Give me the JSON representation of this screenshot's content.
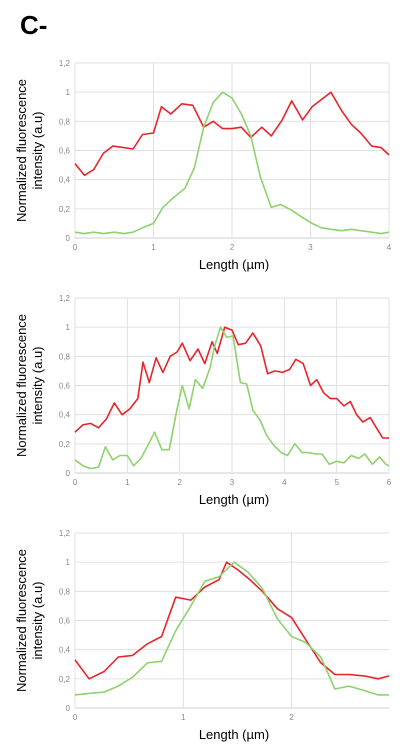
{
  "panel_label": "C-",
  "colors": {
    "red": "#e8242b",
    "green": "#8fd16e",
    "grid": "#e0e0e0",
    "axis": "#cfcfcf",
    "tick": "#888888"
  },
  "chart_data": [
    {
      "type": "line",
      "ylabel": [
        "Normalized fluorescence",
        "intensity (a.u)"
      ],
      "xlabel": "Length (µm)",
      "xlim": [
        0,
        4
      ],
      "ylim": [
        0,
        1.2
      ],
      "xticks": [
        0,
        1,
        2,
        3,
        4
      ],
      "yticks": [
        0,
        0.2,
        0.4,
        0.6,
        0.8,
        1,
        1.2
      ],
      "ytick_labels": [
        "0",
        "0,2",
        "0,4",
        "0,6",
        "0,8",
        "1",
        "1,2"
      ],
      "grid": true,
      "series": [
        {
          "color": "red",
          "points": [
            [
              0,
              0.51
            ],
            [
              0.12,
              0.43
            ],
            [
              0.24,
              0.47
            ],
            [
              0.36,
              0.58
            ],
            [
              0.48,
              0.63
            ],
            [
              0.62,
              0.62
            ],
            [
              0.74,
              0.61
            ],
            [
              0.86,
              0.71
            ],
            [
              1.0,
              0.72
            ],
            [
              1.1,
              0.9
            ],
            [
              1.22,
              0.85
            ],
            [
              1.36,
              0.92
            ],
            [
              1.5,
              0.91
            ],
            [
              1.64,
              0.76
            ],
            [
              1.76,
              0.8
            ],
            [
              1.88,
              0.75
            ],
            [
              2.0,
              0.75
            ],
            [
              2.12,
              0.76
            ],
            [
              2.24,
              0.69
            ],
            [
              2.38,
              0.76
            ],
            [
              2.5,
              0.7
            ],
            [
              2.64,
              0.81
            ],
            [
              2.76,
              0.94
            ],
            [
              2.9,
              0.81
            ],
            [
              3.02,
              0.9
            ],
            [
              3.14,
              0.95
            ],
            [
              3.26,
              1.0
            ],
            [
              3.4,
              0.87
            ],
            [
              3.52,
              0.78
            ],
            [
              3.64,
              0.72
            ],
            [
              3.78,
              0.63
            ],
            [
              3.9,
              0.62
            ],
            [
              4.0,
              0.57
            ]
          ]
        },
        {
          "color": "green",
          "points": [
            [
              0,
              0.04
            ],
            [
              0.12,
              0.03
            ],
            [
              0.24,
              0.04
            ],
            [
              0.36,
              0.03
            ],
            [
              0.5,
              0.04
            ],
            [
              0.62,
              0.03
            ],
            [
              0.74,
              0.04
            ],
            [
              0.86,
              0.07
            ],
            [
              1.0,
              0.1
            ],
            [
              1.12,
              0.21
            ],
            [
              1.26,
              0.28
            ],
            [
              1.4,
              0.34
            ],
            [
              1.52,
              0.48
            ],
            [
              1.64,
              0.76
            ],
            [
              1.76,
              0.93
            ],
            [
              1.88,
              1.0
            ],
            [
              2.0,
              0.96
            ],
            [
              2.12,
              0.85
            ],
            [
              2.24,
              0.7
            ],
            [
              2.36,
              0.42
            ],
            [
              2.5,
              0.21
            ],
            [
              2.62,
              0.23
            ],
            [
              2.76,
              0.19
            ],
            [
              2.9,
              0.14
            ],
            [
              3.02,
              0.1
            ],
            [
              3.14,
              0.07
            ],
            [
              3.26,
              0.06
            ],
            [
              3.4,
              0.05
            ],
            [
              3.52,
              0.06
            ],
            [
              3.64,
              0.05
            ],
            [
              3.78,
              0.04
            ],
            [
              3.9,
              0.03
            ],
            [
              4.0,
              0.04
            ]
          ]
        }
      ]
    },
    {
      "type": "line",
      "ylabel": [
        "Normalized fluorescence",
        "intensity (a.u)"
      ],
      "xlabel": "Length (µm)",
      "xlim": [
        0,
        6
      ],
      "ylim": [
        0,
        1.2
      ],
      "xticks": [
        0,
        1,
        2,
        3,
        4,
        5,
        6
      ],
      "yticks": [
        0,
        0.2,
        0.4,
        0.6,
        0.8,
        1,
        1.2
      ],
      "ytick_labels": [
        "0",
        "0,2",
        "0,4",
        "0,6",
        "0,8",
        "1",
        "1,2"
      ],
      "grid": true,
      "series": [
        {
          "color": "red",
          "points": [
            [
              0,
              0.28
            ],
            [
              0.15,
              0.33
            ],
            [
              0.3,
              0.34
            ],
            [
              0.45,
              0.31
            ],
            [
              0.6,
              0.37
            ],
            [
              0.75,
              0.48
            ],
            [
              0.9,
              0.4
            ],
            [
              1.05,
              0.44
            ],
            [
              1.2,
              0.51
            ],
            [
              1.3,
              0.76
            ],
            [
              1.42,
              0.62
            ],
            [
              1.55,
              0.79
            ],
            [
              1.68,
              0.69
            ],
            [
              1.82,
              0.8
            ],
            [
              1.95,
              0.83
            ],
            [
              2.05,
              0.89
            ],
            [
              2.2,
              0.77
            ],
            [
              2.35,
              0.85
            ],
            [
              2.48,
              0.75
            ],
            [
              2.62,
              0.9
            ],
            [
              2.72,
              0.82
            ],
            [
              2.86,
              1.0
            ],
            [
              3.0,
              0.98
            ],
            [
              3.12,
              0.88
            ],
            [
              3.26,
              0.89
            ],
            [
              3.4,
              0.96
            ],
            [
              3.55,
              0.87
            ],
            [
              3.68,
              0.68
            ],
            [
              3.82,
              0.7
            ],
            [
              3.96,
              0.69
            ],
            [
              4.1,
              0.71
            ],
            [
              4.22,
              0.78
            ],
            [
              4.36,
              0.75
            ],
            [
              4.5,
              0.6
            ],
            [
              4.62,
              0.64
            ],
            [
              4.75,
              0.55
            ],
            [
              4.88,
              0.51
            ],
            [
              5.0,
              0.51
            ],
            [
              5.14,
              0.46
            ],
            [
              5.26,
              0.49
            ],
            [
              5.38,
              0.4
            ],
            [
              5.5,
              0.35
            ],
            [
              5.64,
              0.38
            ],
            [
              5.76,
              0.31
            ],
            [
              5.88,
              0.24
            ],
            [
              6.0,
              0.24
            ]
          ]
        },
        {
          "color": "green",
          "points": [
            [
              0,
              0.09
            ],
            [
              0.15,
              0.05
            ],
            [
              0.3,
              0.03
            ],
            [
              0.45,
              0.04
            ],
            [
              0.58,
              0.18
            ],
            [
              0.72,
              0.09
            ],
            [
              0.86,
              0.12
            ],
            [
              1.0,
              0.12
            ],
            [
              1.12,
              0.05
            ],
            [
              1.26,
              0.1
            ],
            [
              1.38,
              0.18
            ],
            [
              1.52,
              0.28
            ],
            [
              1.66,
              0.16
            ],
            [
              1.8,
              0.16
            ],
            [
              1.94,
              0.42
            ],
            [
              2.05,
              0.6
            ],
            [
              2.18,
              0.44
            ],
            [
              2.3,
              0.64
            ],
            [
              2.44,
              0.58
            ],
            [
              2.58,
              0.72
            ],
            [
              2.66,
              0.86
            ],
            [
              2.78,
              1.0
            ],
            [
              2.9,
              0.93
            ],
            [
              3.02,
              0.94
            ],
            [
              3.16,
              0.62
            ],
            [
              3.28,
              0.61
            ],
            [
              3.4,
              0.43
            ],
            [
              3.54,
              0.36
            ],
            [
              3.66,
              0.26
            ],
            [
              3.8,
              0.19
            ],
            [
              3.94,
              0.14
            ],
            [
              4.06,
              0.12
            ],
            [
              4.2,
              0.2
            ],
            [
              4.34,
              0.14
            ],
            [
              4.46,
              0.14
            ],
            [
              4.6,
              0.13
            ],
            [
              4.72,
              0.13
            ],
            [
              4.86,
              0.06
            ],
            [
              5.0,
              0.08
            ],
            [
              5.14,
              0.07
            ],
            [
              5.28,
              0.12
            ],
            [
              5.42,
              0.1
            ],
            [
              5.54,
              0.13
            ],
            [
              5.68,
              0.06
            ],
            [
              5.82,
              0.11
            ],
            [
              5.94,
              0.06
            ],
            [
              6.0,
              0.05
            ]
          ]
        }
      ]
    },
    {
      "type": "line",
      "ylabel": [
        "Normalized fluorescence",
        "intensity (a.u)"
      ],
      "xlabel": "Length (µm)",
      "xlim": [
        0,
        2.9
      ],
      "ylim": [
        0,
        1.2
      ],
      "xticks": [
        0,
        1,
        2
      ],
      "yticks": [
        0,
        0.2,
        0.4,
        0.6,
        0.8,
        1,
        1.2
      ],
      "ytick_labels": [
        "0",
        "0,2",
        "0,4",
        "0,6",
        "0,8",
        "1",
        "1,2"
      ],
      "grid": true,
      "series": [
        {
          "color": "red",
          "points": [
            [
              0,
              0.33
            ],
            [
              0.13,
              0.2
            ],
            [
              0.27,
              0.25
            ],
            [
              0.4,
              0.35
            ],
            [
              0.53,
              0.36
            ],
            [
              0.67,
              0.44
            ],
            [
              0.8,
              0.49
            ],
            [
              0.93,
              0.76
            ],
            [
              1.07,
              0.74
            ],
            [
              1.2,
              0.83
            ],
            [
              1.33,
              0.88
            ],
            [
              1.4,
              1.0
            ],
            [
              1.5,
              0.95
            ],
            [
              1.6,
              0.89
            ],
            [
              1.73,
              0.8
            ],
            [
              1.87,
              0.68
            ],
            [
              2.0,
              0.62
            ],
            [
              2.13,
              0.47
            ],
            [
              2.27,
              0.31
            ],
            [
              2.4,
              0.23
            ],
            [
              2.53,
              0.23
            ],
            [
              2.67,
              0.22
            ],
            [
              2.8,
              0.2
            ],
            [
              2.9,
              0.22
            ]
          ]
        },
        {
          "color": "green",
          "points": [
            [
              0,
              0.09
            ],
            [
              0.13,
              0.1
            ],
            [
              0.27,
              0.11
            ],
            [
              0.4,
              0.15
            ],
            [
              0.53,
              0.21
            ],
            [
              0.67,
              0.31
            ],
            [
              0.8,
              0.32
            ],
            [
              0.93,
              0.53
            ],
            [
              1.07,
              0.7
            ],
            [
              1.2,
              0.87
            ],
            [
              1.33,
              0.9
            ],
            [
              1.47,
              1.0
            ],
            [
              1.6,
              0.93
            ],
            [
              1.73,
              0.82
            ],
            [
              1.87,
              0.61
            ],
            [
              2.0,
              0.49
            ],
            [
              2.13,
              0.45
            ],
            [
              2.27,
              0.35
            ],
            [
              2.4,
              0.13
            ],
            [
              2.53,
              0.15
            ],
            [
              2.67,
              0.12
            ],
            [
              2.8,
              0.09
            ],
            [
              2.9,
              0.09
            ]
          ]
        }
      ]
    }
  ]
}
